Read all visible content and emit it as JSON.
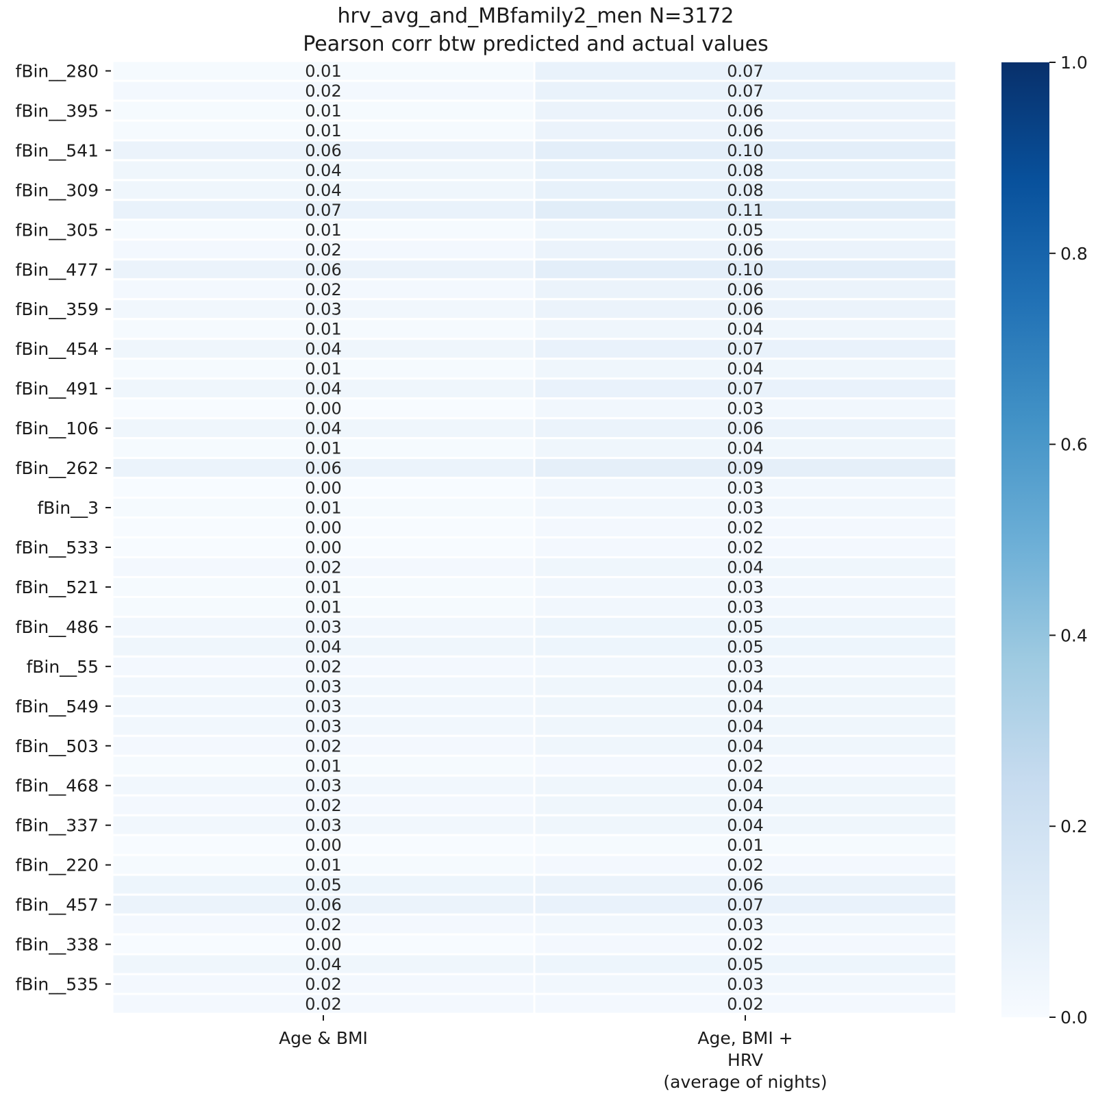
{
  "chart_data": {
    "type": "heatmap",
    "title": "hrv_avg_and_MBfamily2_men N=3172",
    "subtitle": "Pearson corr btw predicted and actual values",
    "columns": [
      "Age & BMI",
      "Age, BMI + HRV (average of nights)"
    ],
    "column_label_lines": [
      [
        "Age & BMI"
      ],
      [
        "Age, BMI +",
        "HRV",
        "(average of nights)"
      ]
    ],
    "row_labels": [
      "fBin__280",
      "",
      "fBin__395",
      "",
      "fBin__541",
      "",
      "fBin__309",
      "",
      "fBin__305",
      "",
      "fBin__477",
      "",
      "fBin__359",
      "",
      "fBin__454",
      "",
      "fBin__491",
      "",
      "fBin__106",
      "",
      "fBin__262",
      "",
      "fBin__3",
      "",
      "fBin__533",
      "",
      "fBin__521",
      "",
      "fBin__486",
      "",
      "fBin__55",
      "",
      "fBin__549",
      "",
      "fBin__503",
      "",
      "fBin__468",
      "",
      "fBin__337",
      "",
      "fBin__220",
      "",
      "fBin__457",
      "",
      "fBin__338",
      "",
      "fBin__535",
      ""
    ],
    "values": [
      [
        0.01,
        0.07
      ],
      [
        0.02,
        0.07
      ],
      [
        0.01,
        0.06
      ],
      [
        0.01,
        0.06
      ],
      [
        0.06,
        0.1
      ],
      [
        0.04,
        0.08
      ],
      [
        0.04,
        0.08
      ],
      [
        0.07,
        0.11
      ],
      [
        0.01,
        0.05
      ],
      [
        0.02,
        0.06
      ],
      [
        0.06,
        0.1
      ],
      [
        0.02,
        0.06
      ],
      [
        0.03,
        0.06
      ],
      [
        0.01,
        0.04
      ],
      [
        0.04,
        0.07
      ],
      [
        0.01,
        0.04
      ],
      [
        0.04,
        0.07
      ],
      [
        0.0,
        0.03
      ],
      [
        0.04,
        0.06
      ],
      [
        0.01,
        0.04
      ],
      [
        0.06,
        0.09
      ],
      [
        0.0,
        0.03
      ],
      [
        0.01,
        0.03
      ],
      [
        0.0,
        0.02
      ],
      [
        0.0,
        0.02
      ],
      [
        0.02,
        0.04
      ],
      [
        0.01,
        0.03
      ],
      [
        0.01,
        0.03
      ],
      [
        0.03,
        0.05
      ],
      [
        0.04,
        0.05
      ],
      [
        0.02,
        0.03
      ],
      [
        0.03,
        0.04
      ],
      [
        0.03,
        0.04
      ],
      [
        0.03,
        0.04
      ],
      [
        0.02,
        0.04
      ],
      [
        0.01,
        0.02
      ],
      [
        0.03,
        0.04
      ],
      [
        0.02,
        0.04
      ],
      [
        0.03,
        0.04
      ],
      [
        0.0,
        0.01
      ],
      [
        0.01,
        0.02
      ],
      [
        0.05,
        0.06
      ],
      [
        0.06,
        0.07
      ],
      [
        0.02,
        0.03
      ],
      [
        0.0,
        0.02
      ],
      [
        0.04,
        0.05
      ],
      [
        0.02,
        0.03
      ],
      [
        0.02,
        0.02
      ]
    ],
    "colorbar": {
      "range": [
        0.0,
        1.0
      ],
      "ticks": [
        0.0,
        0.2,
        0.4,
        0.6,
        0.8,
        1.0
      ],
      "tick_labels": [
        "0.0",
        "0.2",
        "0.4",
        "0.6",
        "0.8",
        "1.0"
      ],
      "colormap": "Blues",
      "colors": [
        "#f7fbff",
        "#deebf7",
        "#c6dbef",
        "#9ecae1",
        "#6baed6",
        "#4292c6",
        "#2171b5",
        "#08519c",
        "#08306b"
      ]
    },
    "value_format": "2 decimals",
    "grid": false
  }
}
